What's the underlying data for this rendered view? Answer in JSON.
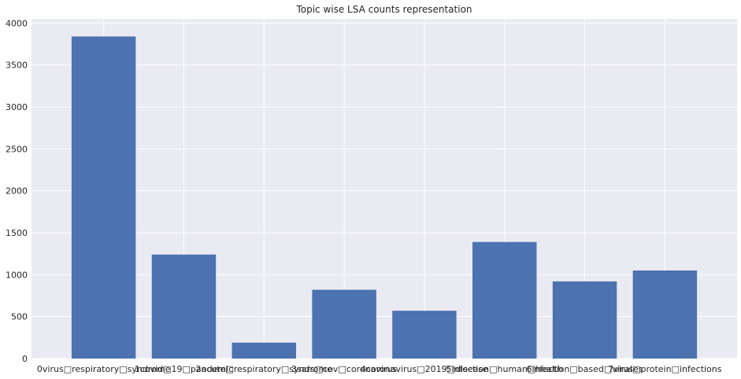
{
  "chart_data": {
    "type": "bar",
    "title": "Topic wise LSA counts representation",
    "xlabel": "",
    "ylabel": "",
    "categories": [
      "0virus□respiratory□syndrome",
      "1covid□19□pandemic",
      "2acute□respiratory□syndrome",
      "3sars□cov□coronavirus",
      "4coronavirus□2019□disease",
      "5infection□human□health",
      "6infection□based□viruses",
      "7viral□protein□infections"
    ],
    "values": [
      3840,
      1240,
      190,
      820,
      570,
      1390,
      920,
      1050
    ],
    "ylim": [
      0,
      4050
    ],
    "yticks": [
      0,
      500,
      1000,
      1500,
      2000,
      2500,
      3000,
      3500,
      4000
    ],
    "grid": true,
    "legend": "none",
    "bar_color": "#4c72b0",
    "background_color": "#eaeaf2"
  }
}
